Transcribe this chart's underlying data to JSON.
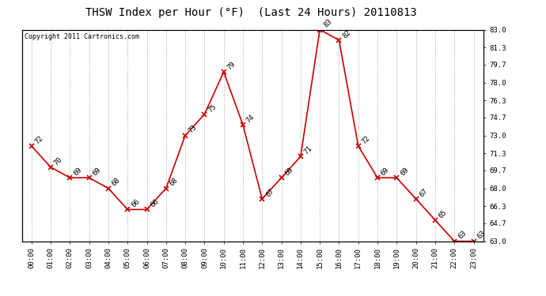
{
  "title": "THSW Index per Hour (°F)  (Last 24 Hours) 20110813",
  "copyright": "Copyright 2011 Cartronics.com",
  "hours": [
    0,
    1,
    2,
    3,
    4,
    5,
    6,
    7,
    8,
    9,
    10,
    11,
    12,
    13,
    14,
    15,
    16,
    17,
    18,
    19,
    20,
    21,
    22,
    23
  ],
  "values": [
    72,
    70,
    69,
    69,
    68,
    66,
    66,
    68,
    73,
    75,
    79,
    74,
    67,
    69,
    71,
    83,
    82,
    72,
    69,
    69,
    67,
    65,
    63,
    63
  ],
  "xlabels": [
    "00:00",
    "01:00",
    "02:00",
    "03:00",
    "04:00",
    "05:00",
    "06:00",
    "07:00",
    "08:00",
    "09:00",
    "10:00",
    "11:00",
    "12:00",
    "13:00",
    "14:00",
    "15:00",
    "16:00",
    "17:00",
    "18:00",
    "19:00",
    "20:00",
    "21:00",
    "22:00",
    "23:00"
  ],
  "ylim": [
    63.0,
    83.0
  ],
  "yticks_right": [
    83.0,
    81.3,
    79.7,
    78.0,
    76.3,
    74.7,
    73.0,
    71.3,
    69.7,
    68.0,
    66.3,
    64.7,
    63.0
  ],
  "line_color": "#cc0000",
  "marker_color": "#cc0000",
  "bg_color": "#ffffff",
  "grid_color": "#bbbbbb",
  "title_fontsize": 10,
  "label_fontsize": 6.5,
  "copyright_fontsize": 6,
  "annotation_fontsize": 6.5
}
